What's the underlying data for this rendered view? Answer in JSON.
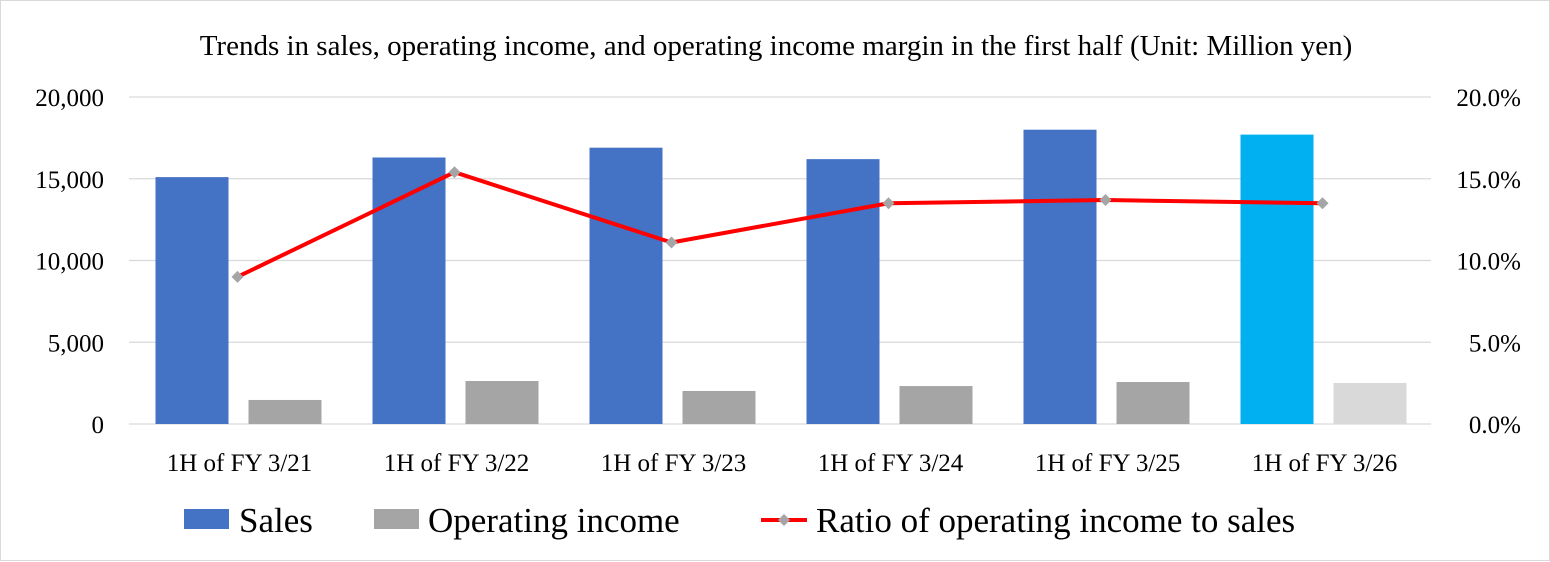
{
  "chart_data": {
    "type": "bar",
    "title": "Trends in sales, operating income, and operating income margin in the first half (Unit: Million yen)",
    "categories": [
      "1H of FY 3/21",
      "1H of FY 3/22",
      "1H of FY 3/23",
      "1H of FY 3/24",
      "1H of FY 3/25",
      "1H of FY 3/26"
    ],
    "series": [
      {
        "name": "Sales",
        "type": "bar",
        "axis": "left",
        "color": "#4472c4",
        "highlight_last_color": "#00b0f0",
        "values": [
          15100,
          16300,
          16900,
          16200,
          18000,
          17700
        ]
      },
      {
        "name": "Operating income",
        "type": "bar",
        "axis": "left",
        "color": "#a5a5a5",
        "highlight_last_color": "#d9d9d9",
        "values": [
          1470,
          2630,
          2020,
          2320,
          2570,
          2510
        ]
      },
      {
        "name": "Ratio of operating income to sales",
        "type": "line",
        "axis": "right",
        "color": "#ff0000",
        "marker_color": "#a5a5a5",
        "values": [
          9.0,
          15.4,
          11.1,
          13.5,
          13.7,
          13.5
        ]
      }
    ],
    "left_axis": {
      "ylim": [
        0,
        20000
      ],
      "ticks": [
        "0",
        "5,000",
        "10,000",
        "15,000",
        "20,000"
      ]
    },
    "right_axis": {
      "ylim": [
        0,
        20
      ],
      "ticks": [
        "0.0%",
        "5.0%",
        "10.0%",
        "15.0%",
        "20.0%"
      ]
    },
    "grid": true,
    "legend": "bottom"
  }
}
